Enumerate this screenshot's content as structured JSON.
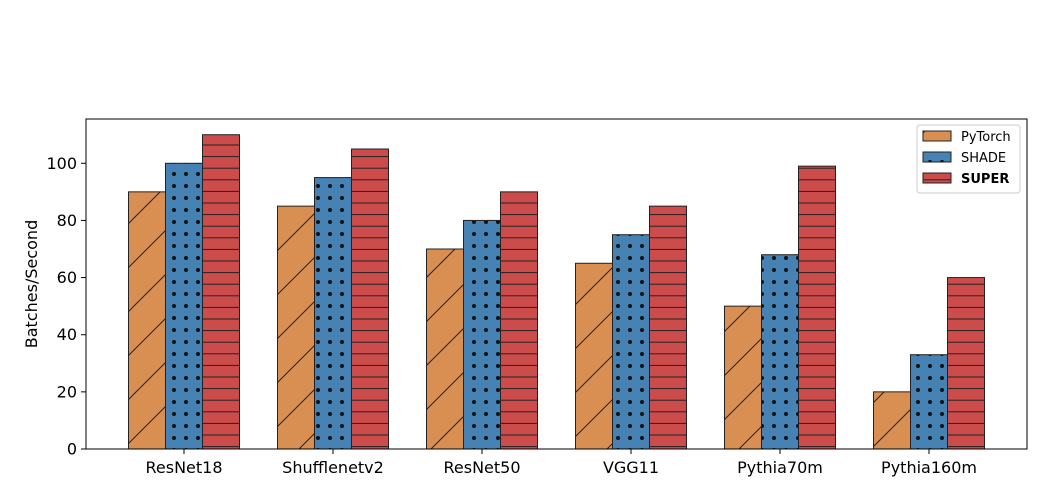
{
  "chart_data": {
    "type": "bar",
    "title": "",
    "xlabel": "",
    "ylabel": "Batches/Second",
    "categories": [
      "ResNet18",
      "Shufflenetv2",
      "ResNet50",
      "VGG11",
      "Pythia70m",
      "Pythia160m"
    ],
    "series": [
      {
        "name": "PyTorch",
        "color": "#d98f52",
        "hatch": "diagonal",
        "values": [
          90,
          85,
          70,
          65,
          50,
          20
        ]
      },
      {
        "name": "SHADE",
        "color": "#4682b4",
        "hatch": "dots",
        "values": [
          100,
          95,
          80,
          75,
          68,
          33
        ]
      },
      {
        "name": "SUPER",
        "color": "#cc4b4b",
        "hatch": "horizontal",
        "values": [
          110,
          105,
          90,
          85,
          99,
          60
        ],
        "legend_bold": true
      }
    ],
    "ylim": [
      0,
      115.5
    ],
    "yticks": [
      0,
      20,
      40,
      60,
      80,
      100
    ],
    "grid": false,
    "legend_position": "top-right"
  }
}
